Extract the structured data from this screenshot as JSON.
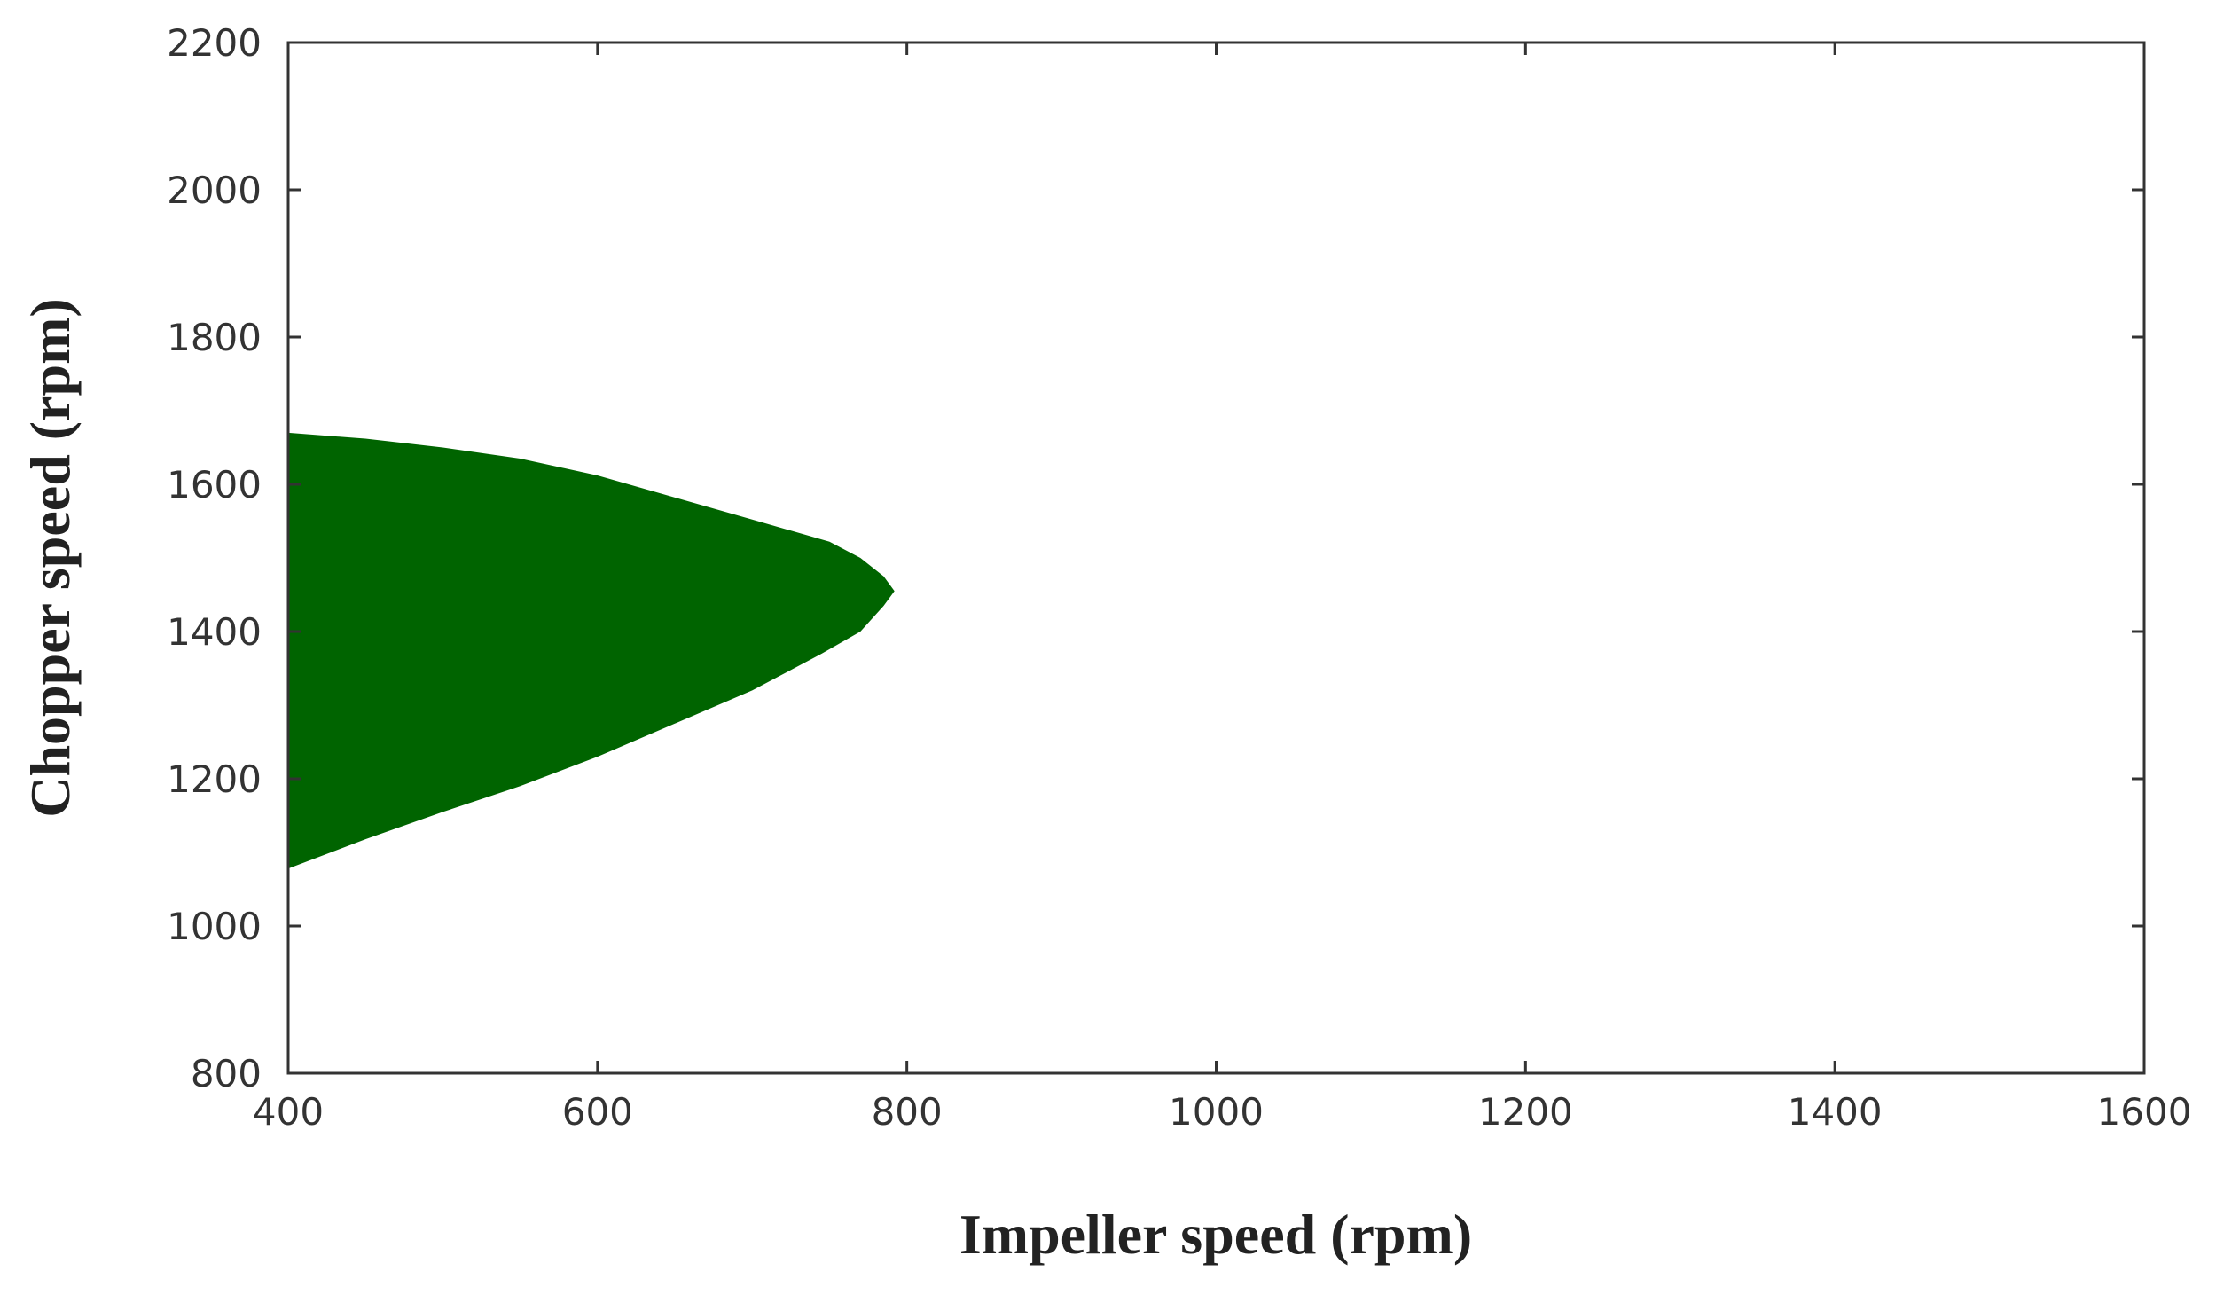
{
  "chart_data": {
    "type": "area",
    "title": "",
    "xlabel": "Impeller speed (rpm)",
    "ylabel": "Chopper speed (rpm)",
    "xlim": [
      400,
      1600
    ],
    "ylim": [
      800,
      2200
    ],
    "x_ticks": [
      "400",
      "600",
      "800",
      "1000",
      "1200",
      "1400",
      "1600"
    ],
    "y_ticks": [
      "800",
      "1000",
      "1200",
      "1400",
      "1600",
      "1800",
      "2000",
      "2200"
    ],
    "grid": false,
    "legend": "none",
    "fill_color": "#006400",
    "region_outline": [
      {
        "x": 400,
        "y": 1670
      },
      {
        "x": 450,
        "y": 1662
      },
      {
        "x": 500,
        "y": 1650
      },
      {
        "x": 550,
        "y": 1635
      },
      {
        "x": 600,
        "y": 1612
      },
      {
        "x": 650,
        "y": 1582
      },
      {
        "x": 700,
        "y": 1552
      },
      {
        "x": 750,
        "y": 1522
      },
      {
        "x": 770,
        "y": 1500
      },
      {
        "x": 785,
        "y": 1475
      },
      {
        "x": 792,
        "y": 1455
      },
      {
        "x": 785,
        "y": 1435
      },
      {
        "x": 770,
        "y": 1400
      },
      {
        "x": 745,
        "y": 1370
      },
      {
        "x": 700,
        "y": 1320
      },
      {
        "x": 650,
        "y": 1275
      },
      {
        "x": 600,
        "y": 1230
      },
      {
        "x": 550,
        "y": 1190
      },
      {
        "x": 500,
        "y": 1155
      },
      {
        "x": 450,
        "y": 1118
      },
      {
        "x": 400,
        "y": 1078
      }
    ]
  }
}
